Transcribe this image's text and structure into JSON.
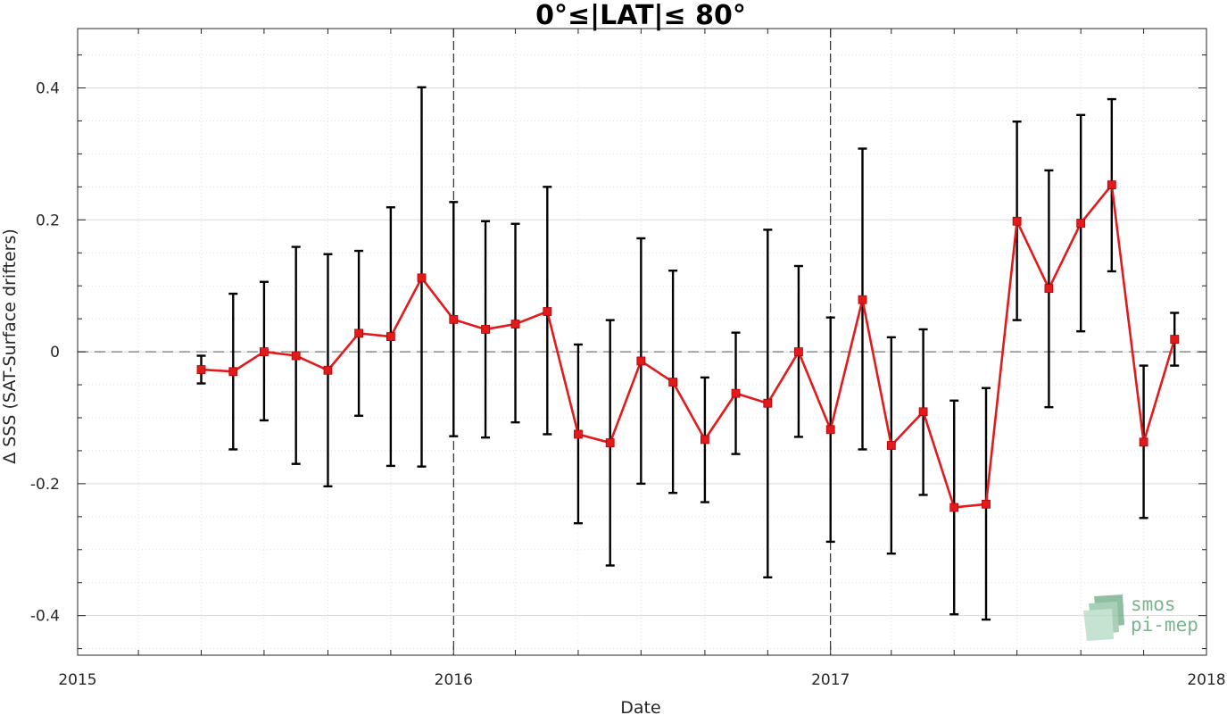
{
  "chart_data": {
    "type": "line",
    "title": "0°≤|LAT|≤ 80°",
    "xlabel": "Date",
    "ylabel": "Δ SSS (SAT-Surface drifters)",
    "xlim": [
      "2015-01-01",
      "2018-01-01"
    ],
    "ylim": [
      -0.46,
      0.49
    ],
    "x_ticks": [
      "2015",
      "2016",
      "2017",
      "2018"
    ],
    "y_ticks": [
      {
        "value": 0.4,
        "label": "0.4"
      },
      {
        "value": 0.2,
        "label": "0.2"
      },
      {
        "value": 0,
        "label": "0"
      },
      {
        "value": -0.2,
        "label": "-0.2"
      },
      {
        "value": -0.4,
        "label": "-0.4"
      }
    ],
    "grid": true,
    "zero_line": {
      "y": 0,
      "style": "dashed"
    },
    "year_lines": [
      "2016-01-01",
      "2017-01-01"
    ],
    "series": [
      {
        "color": "#e31a1c",
        "errorbar_color": "#000000",
        "points": [
          {
            "x": "2015-05-01",
            "y": -0.027,
            "lo": -0.048,
            "hi": -0.006
          },
          {
            "x": "2015-06-01",
            "y": -0.03,
            "lo": -0.148,
            "hi": 0.088
          },
          {
            "x": "2015-07-01",
            "y": 0.0,
            "lo": -0.104,
            "hi": 0.106
          },
          {
            "x": "2015-08-01",
            "y": -0.006,
            "lo": -0.17,
            "hi": 0.159
          },
          {
            "x": "2015-09-01",
            "y": -0.028,
            "lo": -0.204,
            "hi": 0.148
          },
          {
            "x": "2015-10-01",
            "y": 0.028,
            "lo": -0.097,
            "hi": 0.153
          },
          {
            "x": "2015-11-01",
            "y": 0.023,
            "lo": -0.173,
            "hi": 0.219
          },
          {
            "x": "2015-12-01",
            "y": 0.112,
            "lo": -0.174,
            "hi": 0.401
          },
          {
            "x": "2016-01-01",
            "y": 0.049,
            "lo": -0.128,
            "hi": 0.227
          },
          {
            "x": "2016-02-01",
            "y": 0.034,
            "lo": -0.13,
            "hi": 0.198
          },
          {
            "x": "2016-03-01",
            "y": 0.042,
            "lo": -0.107,
            "hi": 0.194
          },
          {
            "x": "2016-04-01",
            "y": 0.061,
            "lo": -0.125,
            "hi": 0.25
          },
          {
            "x": "2016-05-01",
            "y": -0.125,
            "lo": -0.26,
            "hi": 0.011
          },
          {
            "x": "2016-06-01",
            "y": -0.138,
            "lo": -0.324,
            "hi": 0.048
          },
          {
            "x": "2016-07-01",
            "y": -0.014,
            "lo": -0.2,
            "hi": 0.172
          },
          {
            "x": "2016-08-01",
            "y": -0.046,
            "lo": -0.214,
            "hi": 0.123
          },
          {
            "x": "2016-09-01",
            "y": -0.133,
            "lo": -0.228,
            "hi": -0.039
          },
          {
            "x": "2016-10-01",
            "y": -0.063,
            "lo": -0.155,
            "hi": 0.029
          },
          {
            "x": "2016-11-01",
            "y": -0.078,
            "lo": -0.342,
            "hi": 0.185
          },
          {
            "x": "2016-12-01",
            "y": 0.0,
            "lo": -0.129,
            "hi": 0.13
          },
          {
            "x": "2017-01-01",
            "y": -0.118,
            "lo": -0.288,
            "hi": 0.052
          },
          {
            "x": "2017-02-01",
            "y": 0.079,
            "lo": -0.148,
            "hi": 0.308
          },
          {
            "x": "2017-03-01",
            "y": -0.142,
            "lo": -0.306,
            "hi": 0.022
          },
          {
            "x": "2017-04-01",
            "y": -0.091,
            "lo": -0.217,
            "hi": 0.034
          },
          {
            "x": "2017-05-01",
            "y": -0.236,
            "lo": -0.398,
            "hi": -0.074
          },
          {
            "x": "2017-06-01",
            "y": -0.231,
            "lo": -0.406,
            "hi": -0.055
          },
          {
            "x": "2017-07-01",
            "y": 0.198,
            "lo": 0.048,
            "hi": 0.349
          },
          {
            "x": "2017-08-01",
            "y": 0.096,
            "lo": -0.084,
            "hi": 0.275
          },
          {
            "x": "2017-09-01",
            "y": 0.195,
            "lo": 0.031,
            "hi": 0.359
          },
          {
            "x": "2017-10-01",
            "y": 0.253,
            "lo": 0.122,
            "hi": 0.383
          },
          {
            "x": "2017-11-01",
            "y": -0.137,
            "lo": -0.252,
            "hi": -0.021
          },
          {
            "x": "2017-12-01",
            "y": 0.019,
            "lo": -0.021,
            "hi": 0.059
          }
        ]
      }
    ]
  },
  "logo": {
    "line1": "smos",
    "line2": "pi-mep",
    "color": "#7bb38f"
  }
}
